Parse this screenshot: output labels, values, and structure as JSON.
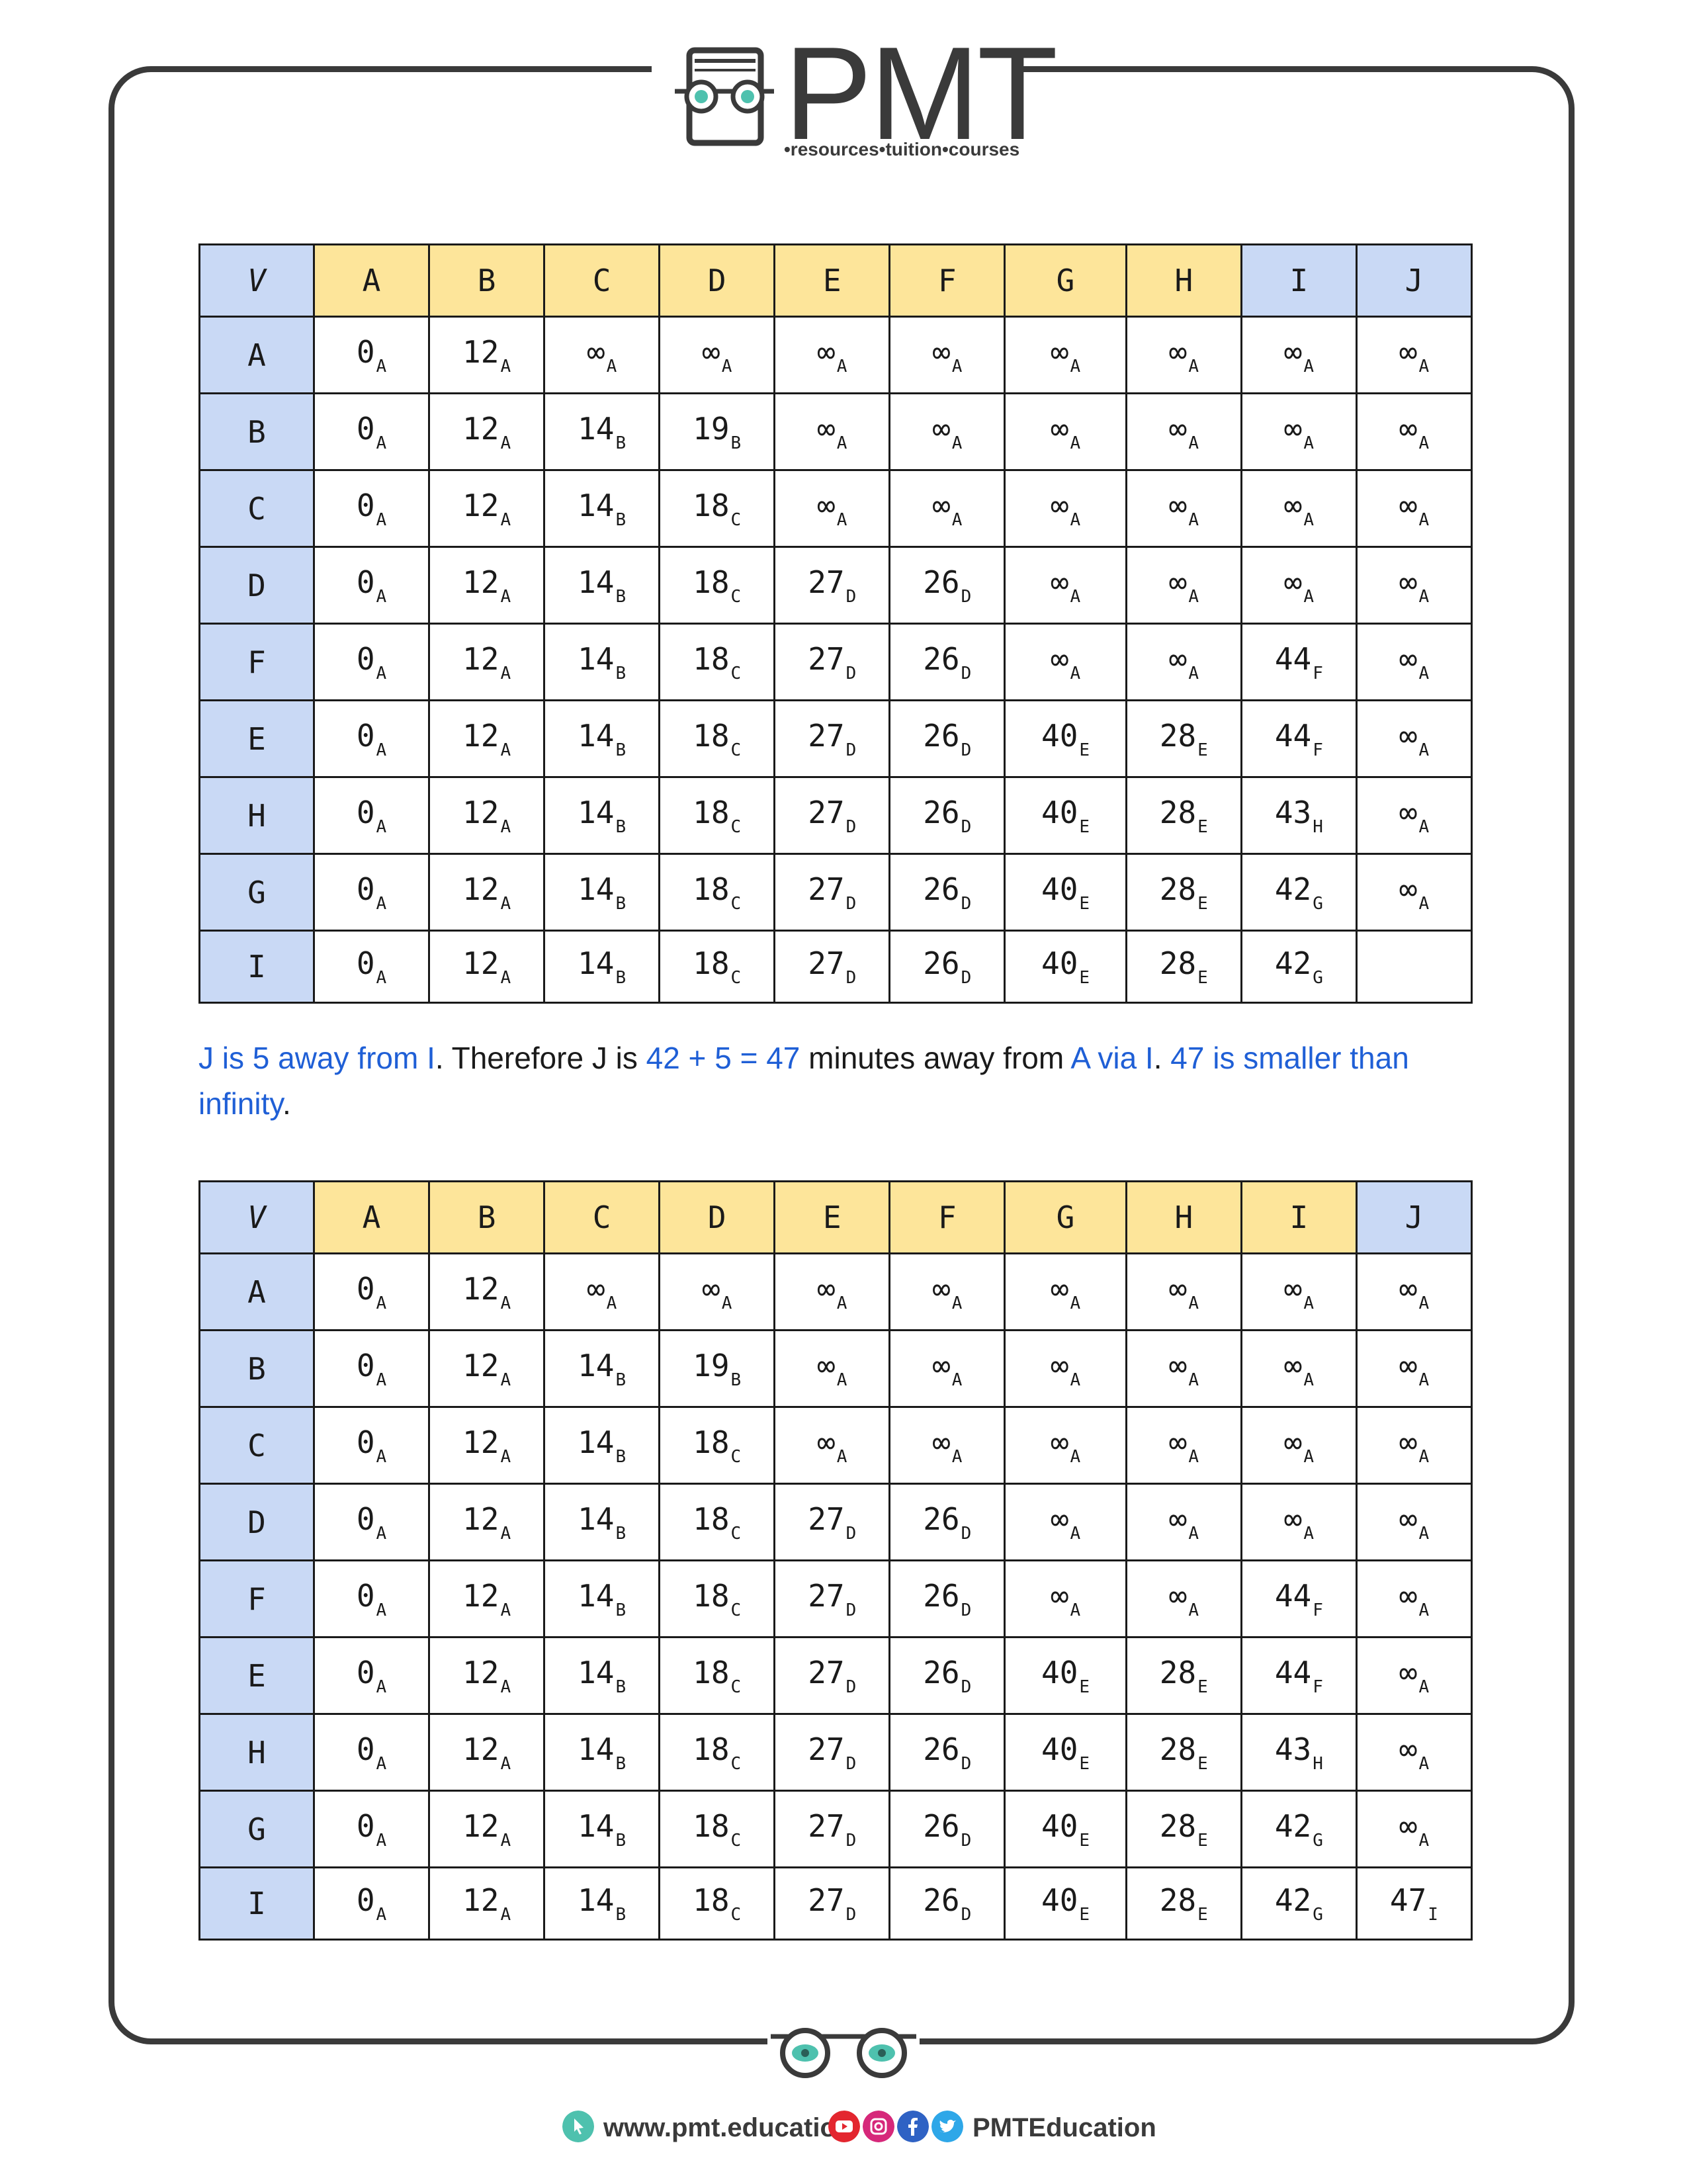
{
  "logo": {
    "text": "PMT",
    "tagline": "•resources•tuition•courses"
  },
  "colors": {
    "header_blue": "#c9d9f5",
    "header_yellow": "#fde59a",
    "highlight": "#1f5fd6",
    "frame": "#3a3a3a"
  },
  "table1": {
    "header": [
      "V",
      "A",
      "B",
      "C",
      "D",
      "E",
      "F",
      "G",
      "H",
      "I",
      "J"
    ],
    "header_colors": [
      "blue",
      "yellow",
      "yellow",
      "yellow",
      "yellow",
      "yellow",
      "yellow",
      "yellow",
      "yellow",
      "blue",
      "blue"
    ],
    "rows": [
      {
        "label": "A",
        "cells": [
          [
            "0",
            "A"
          ],
          [
            "12",
            "A"
          ],
          [
            "∞",
            "A"
          ],
          [
            "∞",
            "A"
          ],
          [
            "∞",
            "A"
          ],
          [
            "∞",
            "A"
          ],
          [
            "∞",
            "A"
          ],
          [
            "∞",
            "A"
          ],
          [
            "∞",
            "A"
          ],
          [
            "∞",
            "A"
          ]
        ]
      },
      {
        "label": "B",
        "cells": [
          [
            "0",
            "A"
          ],
          [
            "12",
            "A"
          ],
          [
            "14",
            "B"
          ],
          [
            "19",
            "B"
          ],
          [
            "∞",
            "A"
          ],
          [
            "∞",
            "A"
          ],
          [
            "∞",
            "A"
          ],
          [
            "∞",
            "A"
          ],
          [
            "∞",
            "A"
          ],
          [
            "∞",
            "A"
          ]
        ]
      },
      {
        "label": "C",
        "cells": [
          [
            "0",
            "A"
          ],
          [
            "12",
            "A"
          ],
          [
            "14",
            "B"
          ],
          [
            "18",
            "C"
          ],
          [
            "∞",
            "A"
          ],
          [
            "∞",
            "A"
          ],
          [
            "∞",
            "A"
          ],
          [
            "∞",
            "A"
          ],
          [
            "∞",
            "A"
          ],
          [
            "∞",
            "A"
          ]
        ]
      },
      {
        "label": "D",
        "cells": [
          [
            "0",
            "A"
          ],
          [
            "12",
            "A"
          ],
          [
            "14",
            "B"
          ],
          [
            "18",
            "C"
          ],
          [
            "27",
            "D"
          ],
          [
            "26",
            "D"
          ],
          [
            "∞",
            "A"
          ],
          [
            "∞",
            "A"
          ],
          [
            "∞",
            "A"
          ],
          [
            "∞",
            "A"
          ]
        ]
      },
      {
        "label": "F",
        "cells": [
          [
            "0",
            "A"
          ],
          [
            "12",
            "A"
          ],
          [
            "14",
            "B"
          ],
          [
            "18",
            "C"
          ],
          [
            "27",
            "D"
          ],
          [
            "26",
            "D"
          ],
          [
            "∞",
            "A"
          ],
          [
            "∞",
            "A"
          ],
          [
            "44",
            "F"
          ],
          [
            "∞",
            "A"
          ]
        ]
      },
      {
        "label": "E",
        "cells": [
          [
            "0",
            "A"
          ],
          [
            "12",
            "A"
          ],
          [
            "14",
            "B"
          ],
          [
            "18",
            "C"
          ],
          [
            "27",
            "D"
          ],
          [
            "26",
            "D"
          ],
          [
            "40",
            "E"
          ],
          [
            "28",
            "E"
          ],
          [
            "44",
            "F"
          ],
          [
            "∞",
            "A"
          ]
        ]
      },
      {
        "label": "H",
        "cells": [
          [
            "0",
            "A"
          ],
          [
            "12",
            "A"
          ],
          [
            "14",
            "B"
          ],
          [
            "18",
            "C"
          ],
          [
            "27",
            "D"
          ],
          [
            "26",
            "D"
          ],
          [
            "40",
            "E"
          ],
          [
            "28",
            "E"
          ],
          [
            "43",
            "H"
          ],
          [
            "∞",
            "A"
          ]
        ]
      },
      {
        "label": "G",
        "cells": [
          [
            "0",
            "A"
          ],
          [
            "12",
            "A"
          ],
          [
            "14",
            "B"
          ],
          [
            "18",
            "C"
          ],
          [
            "27",
            "D"
          ],
          [
            "26",
            "D"
          ],
          [
            "40",
            "E"
          ],
          [
            "28",
            "E"
          ],
          [
            "42",
            "G"
          ],
          [
            "∞",
            "A"
          ]
        ]
      },
      {
        "label": "I",
        "cells": [
          [
            "0",
            "A"
          ],
          [
            "12",
            "A"
          ],
          [
            "14",
            "B"
          ],
          [
            "18",
            "C"
          ],
          [
            "27",
            "D"
          ],
          [
            "26",
            "D"
          ],
          [
            "40",
            "E"
          ],
          [
            "28",
            "E"
          ],
          [
            "42",
            "G"
          ],
          [
            "",
            ""
          ]
        ]
      }
    ]
  },
  "paragraph": [
    {
      "text": "J is 5 away from I",
      "hl": true
    },
    {
      "text": ". Therefore J is ",
      "hl": false
    },
    {
      "text": "42 + 5 = 47",
      "hl": true
    },
    {
      "text": " minutes away from ",
      "hl": false
    },
    {
      "text": "A via I",
      "hl": true
    },
    {
      "text": ". ",
      "hl": false
    },
    {
      "text": "47 is smaller than infinity",
      "hl": true
    },
    {
      "text": ".",
      "hl": false
    }
  ],
  "table2": {
    "header": [
      "V",
      "A",
      "B",
      "C",
      "D",
      "E",
      "F",
      "G",
      "H",
      "I",
      "J"
    ],
    "header_colors": [
      "blue",
      "yellow",
      "yellow",
      "yellow",
      "yellow",
      "yellow",
      "yellow",
      "yellow",
      "yellow",
      "yellow",
      "blue"
    ],
    "rows": [
      {
        "label": "A",
        "cells": [
          [
            "0",
            "A"
          ],
          [
            "12",
            "A"
          ],
          [
            "∞",
            "A"
          ],
          [
            "∞",
            "A"
          ],
          [
            "∞",
            "A"
          ],
          [
            "∞",
            "A"
          ],
          [
            "∞",
            "A"
          ],
          [
            "∞",
            "A"
          ],
          [
            "∞",
            "A"
          ],
          [
            "∞",
            "A"
          ]
        ]
      },
      {
        "label": "B",
        "cells": [
          [
            "0",
            "A"
          ],
          [
            "12",
            "A"
          ],
          [
            "14",
            "B"
          ],
          [
            "19",
            "B"
          ],
          [
            "∞",
            "A"
          ],
          [
            "∞",
            "A"
          ],
          [
            "∞",
            "A"
          ],
          [
            "∞",
            "A"
          ],
          [
            "∞",
            "A"
          ],
          [
            "∞",
            "A"
          ]
        ]
      },
      {
        "label": "C",
        "cells": [
          [
            "0",
            "A"
          ],
          [
            "12",
            "A"
          ],
          [
            "14",
            "B"
          ],
          [
            "18",
            "C"
          ],
          [
            "∞",
            "A"
          ],
          [
            "∞",
            "A"
          ],
          [
            "∞",
            "A"
          ],
          [
            "∞",
            "A"
          ],
          [
            "∞",
            "A"
          ],
          [
            "∞",
            "A"
          ]
        ]
      },
      {
        "label": "D",
        "cells": [
          [
            "0",
            "A"
          ],
          [
            "12",
            "A"
          ],
          [
            "14",
            "B"
          ],
          [
            "18",
            "C"
          ],
          [
            "27",
            "D"
          ],
          [
            "26",
            "D"
          ],
          [
            "∞",
            "A"
          ],
          [
            "∞",
            "A"
          ],
          [
            "∞",
            "A"
          ],
          [
            "∞",
            "A"
          ]
        ]
      },
      {
        "label": "F",
        "cells": [
          [
            "0",
            "A"
          ],
          [
            "12",
            "A"
          ],
          [
            "14",
            "B"
          ],
          [
            "18",
            "C"
          ],
          [
            "27",
            "D"
          ],
          [
            "26",
            "D"
          ],
          [
            "∞",
            "A"
          ],
          [
            "∞",
            "A"
          ],
          [
            "44",
            "F"
          ],
          [
            "∞",
            "A"
          ]
        ]
      },
      {
        "label": "E",
        "cells": [
          [
            "0",
            "A"
          ],
          [
            "12",
            "A"
          ],
          [
            "14",
            "B"
          ],
          [
            "18",
            "C"
          ],
          [
            "27",
            "D"
          ],
          [
            "26",
            "D"
          ],
          [
            "40",
            "E"
          ],
          [
            "28",
            "E"
          ],
          [
            "44",
            "F"
          ],
          [
            "∞",
            "A"
          ]
        ]
      },
      {
        "label": "H",
        "cells": [
          [
            "0",
            "A"
          ],
          [
            "12",
            "A"
          ],
          [
            "14",
            "B"
          ],
          [
            "18",
            "C"
          ],
          [
            "27",
            "D"
          ],
          [
            "26",
            "D"
          ],
          [
            "40",
            "E"
          ],
          [
            "28",
            "E"
          ],
          [
            "43",
            "H"
          ],
          [
            "∞",
            "A"
          ]
        ]
      },
      {
        "label": "G",
        "cells": [
          [
            "0",
            "A"
          ],
          [
            "12",
            "A"
          ],
          [
            "14",
            "B"
          ],
          [
            "18",
            "C"
          ],
          [
            "27",
            "D"
          ],
          [
            "26",
            "D"
          ],
          [
            "40",
            "E"
          ],
          [
            "28",
            "E"
          ],
          [
            "42",
            "G"
          ],
          [
            "∞",
            "A"
          ]
        ]
      },
      {
        "label": "I",
        "cells": [
          [
            "0",
            "A"
          ],
          [
            "12",
            "A"
          ],
          [
            "14",
            "B"
          ],
          [
            "18",
            "C"
          ],
          [
            "27",
            "D"
          ],
          [
            "26",
            "D"
          ],
          [
            "40",
            "E"
          ],
          [
            "28",
            "E"
          ],
          [
            "42",
            "G"
          ],
          [
            "47",
            "I"
          ]
        ]
      }
    ]
  },
  "footer": {
    "website": "www.pmt.education",
    "social_handle": "PMTEducation",
    "icons": [
      "cursor-icon",
      "youtube-icon",
      "instagram-icon",
      "facebook-icon",
      "twitter-icon"
    ]
  }
}
